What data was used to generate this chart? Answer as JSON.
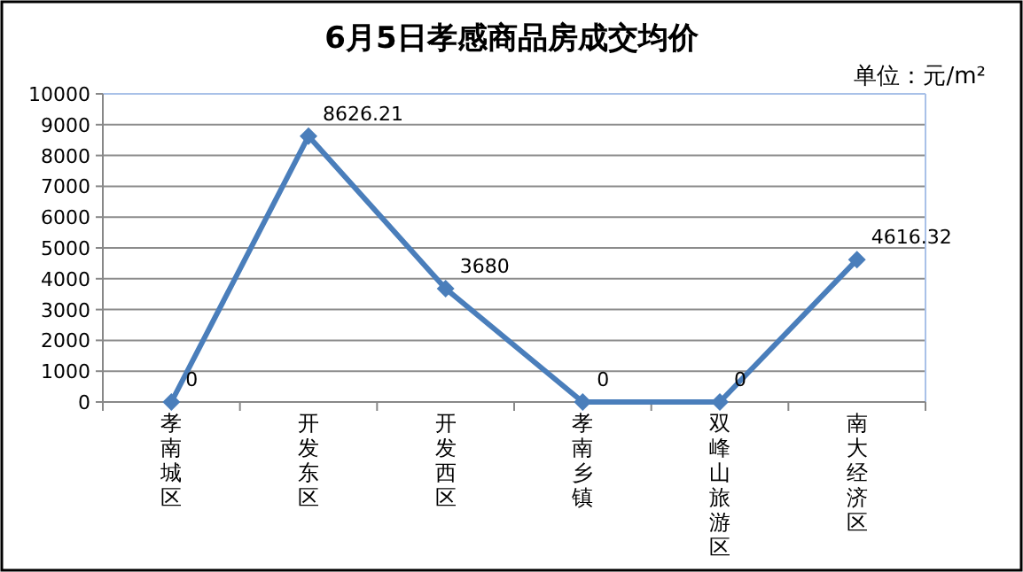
{
  "chart_data": {
    "type": "line",
    "title": "6月5日孝感商品房成交均价",
    "annotations": [
      "单位：元/m²"
    ],
    "categories": [
      "孝南城区",
      "开发东区",
      "开发西区",
      "孝南乡镇",
      "双峰山旅游区",
      "南大经济区"
    ],
    "series": [
      {
        "color": "#4a7ebb",
        "values": [
          0,
          8626.21,
          3680,
          0,
          0,
          4616.32
        ]
      }
    ],
    "ylim": [
      0,
      10000
    ],
    "yticks": [
      0,
      1000,
      2000,
      3000,
      4000,
      5000,
      6000,
      7000,
      8000,
      9000,
      10000
    ],
    "grid": "y",
    "marker": "diamond",
    "line_style": "solid",
    "data_labels": true
  }
}
